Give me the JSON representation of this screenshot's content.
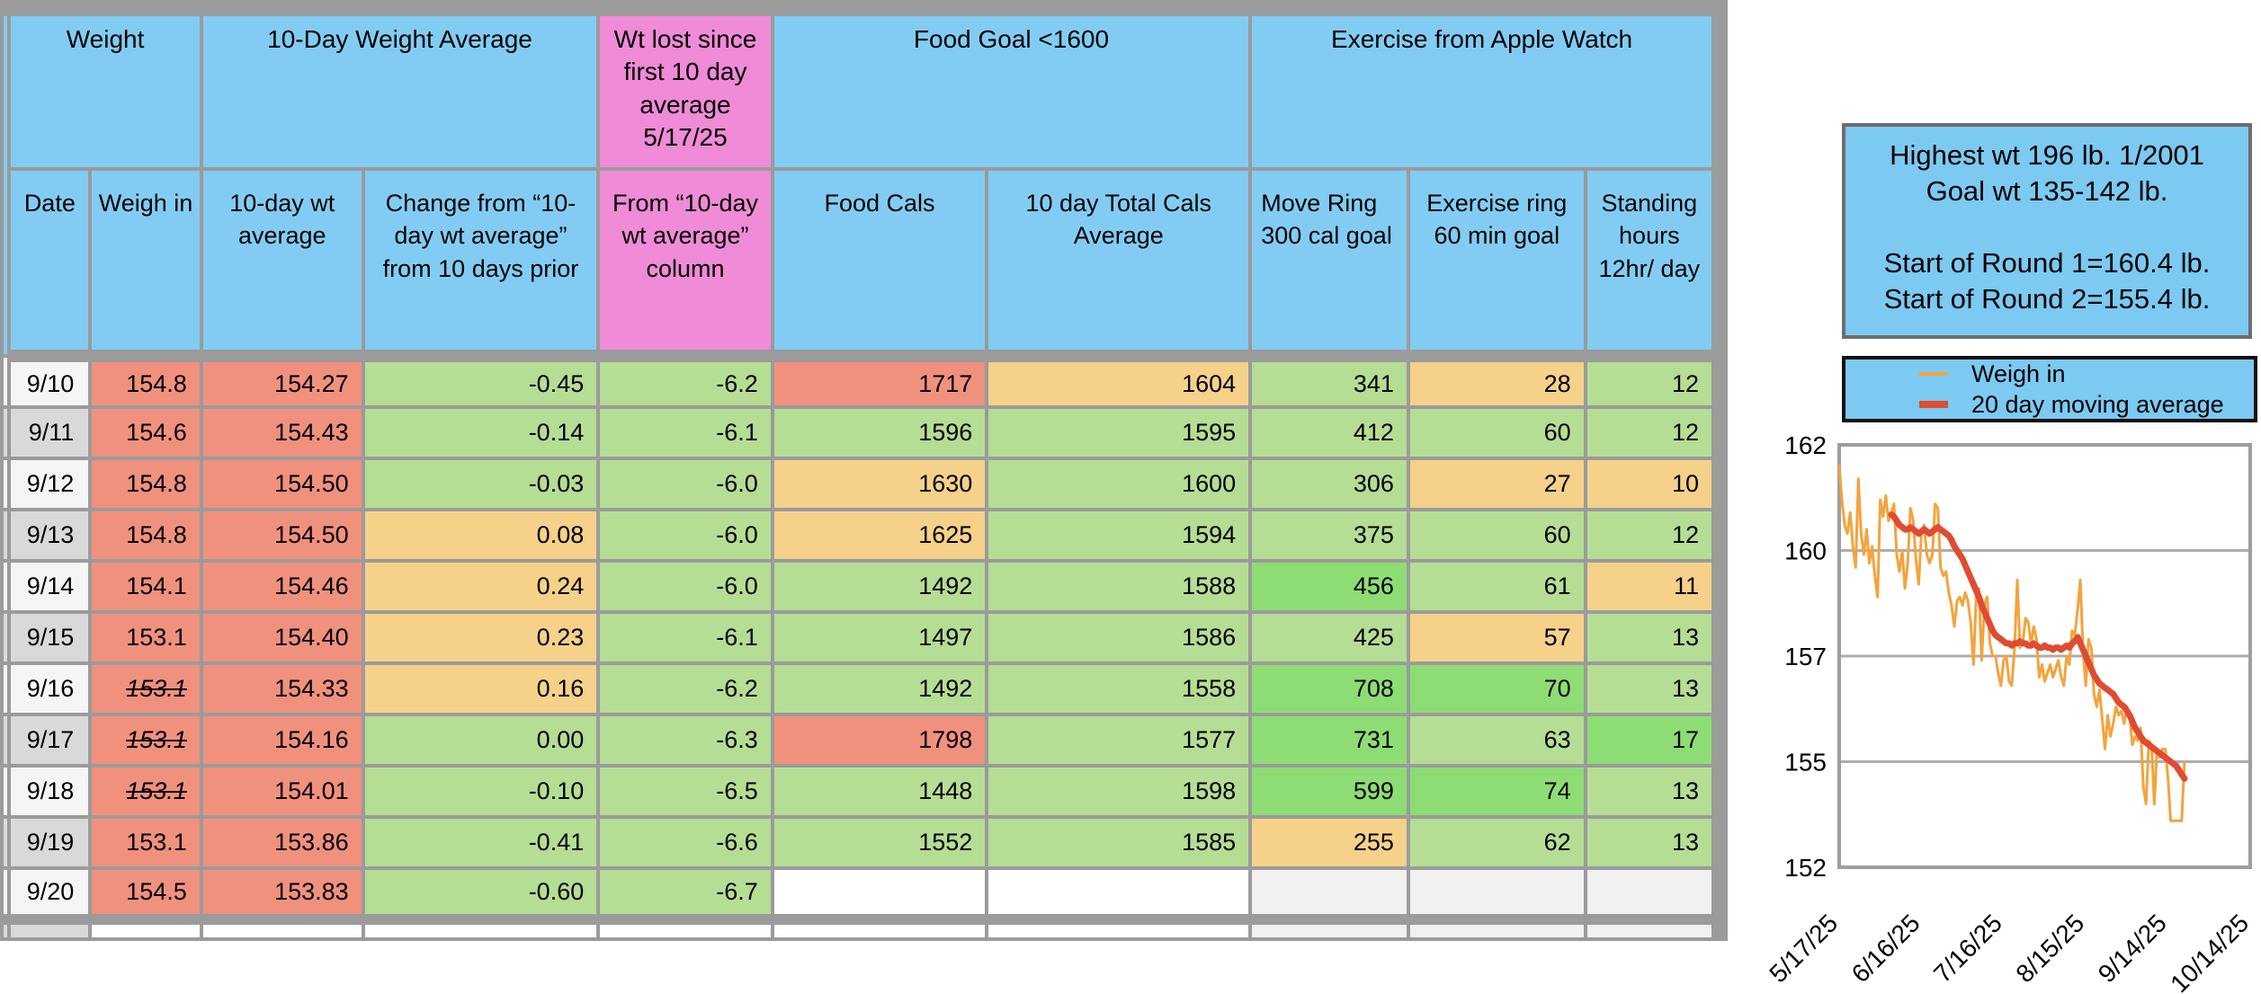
{
  "table": {
    "group_headers": [
      {
        "label": "Weight",
        "style": "blue",
        "span": 2
      },
      {
        "label": "10-Day Weight Average",
        "style": "blue",
        "span": 2
      },
      {
        "label": "Wt lost since first 10 day average 5/17/25",
        "style": "pink",
        "span": 1
      },
      {
        "label": "Food Goal <1600",
        "style": "blue",
        "span": 2
      },
      {
        "label": "Exercise from Apple Watch",
        "style": "blue",
        "span": 3
      }
    ],
    "columns": [
      {
        "key": "date",
        "label": "Date",
        "style": "blue"
      },
      {
        "key": "weigh-in",
        "label": "Weigh in",
        "style": "blue"
      },
      {
        "key": "10day-avg",
        "label": "10-day wt average",
        "style": "blue"
      },
      {
        "key": "change-from-prior",
        "label": "Change from “10-day wt average” from 10 days prior",
        "style": "blue"
      },
      {
        "key": "wt-lost",
        "label": "From “10-day wt average” column",
        "style": "pink"
      },
      {
        "key": "food-cals",
        "label": "Food Cals",
        "style": "blue"
      },
      {
        "key": "food-avg",
        "label": "10 day Total Cals Average",
        "style": "blue"
      },
      {
        "key": "move-ring",
        "label": "Move Ring 300 cal goal",
        "style": "blue"
      },
      {
        "key": "exercise-ring",
        "label": "Exercise ring 60 min goal",
        "style": "blue"
      },
      {
        "key": "standing-hours",
        "label": "Standing hours 12hr/ day",
        "style": "blue"
      }
    ],
    "rows": [
      {
        "stripe": "light",
        "strike_weigh_in": false,
        "values": [
          "9/10",
          "154.8",
          "154.27",
          "-0.45",
          "-6.2",
          "1717",
          "1604",
          "341",
          "28",
          "12"
        ],
        "bgs": [
          "red",
          "red",
          "green",
          "green",
          "red",
          "yellow",
          "green",
          "yellow",
          "green"
        ]
      },
      {
        "stripe": "dark",
        "strike_weigh_in": false,
        "values": [
          "9/11",
          "154.6",
          "154.43",
          "-0.14",
          "-6.1",
          "1596",
          "1595",
          "412",
          "60",
          "12"
        ],
        "bgs": [
          "red",
          "red",
          "green",
          "green",
          "green",
          "green",
          "green",
          "green",
          "green"
        ]
      },
      {
        "stripe": "light",
        "strike_weigh_in": false,
        "values": [
          "9/12",
          "154.8",
          "154.50",
          "-0.03",
          "-6.0",
          "1630",
          "1600",
          "306",
          "27",
          "10"
        ],
        "bgs": [
          "red",
          "red",
          "green",
          "green",
          "yellow",
          "green",
          "green",
          "yellow",
          "yellow"
        ]
      },
      {
        "stripe": "dark",
        "strike_weigh_in": false,
        "values": [
          "9/13",
          "154.8",
          "154.50",
          "0.08",
          "-6.0",
          "1625",
          "1594",
          "375",
          "60",
          "12"
        ],
        "bgs": [
          "red",
          "red",
          "yellow",
          "green",
          "yellow",
          "green",
          "green",
          "green",
          "green"
        ]
      },
      {
        "stripe": "light",
        "strike_weigh_in": false,
        "values": [
          "9/14",
          "154.1",
          "154.46",
          "0.24",
          "-6.0",
          "1492",
          "1588",
          "456",
          "61",
          "11"
        ],
        "bgs": [
          "red",
          "red",
          "yellow",
          "green",
          "green",
          "green",
          "bgreen",
          "green",
          "yellow"
        ]
      },
      {
        "stripe": "dark",
        "strike_weigh_in": false,
        "values": [
          "9/15",
          "153.1",
          "154.40",
          "0.23",
          "-6.1",
          "1497",
          "1586",
          "425",
          "57",
          "13"
        ],
        "bgs": [
          "red",
          "red",
          "yellow",
          "green",
          "green",
          "green",
          "green",
          "yellow",
          "green"
        ]
      },
      {
        "stripe": "light",
        "strike_weigh_in": true,
        "values": [
          "9/16",
          "153.1",
          "154.33",
          "0.16",
          "-6.2",
          "1492",
          "1558",
          "708",
          "70",
          "13"
        ],
        "bgs": [
          "red",
          "red",
          "yellow",
          "green",
          "green",
          "green",
          "bgreen",
          "bgreen",
          "green"
        ]
      },
      {
        "stripe": "dark",
        "strike_weigh_in": true,
        "values": [
          "9/17",
          "153.1",
          "154.16",
          "0.00",
          "-6.3",
          "1798",
          "1577",
          "731",
          "63",
          "17"
        ],
        "bgs": [
          "red",
          "red",
          "green",
          "green",
          "red",
          "green",
          "bgreen",
          "green",
          "bgreen"
        ]
      },
      {
        "stripe": "light",
        "strike_weigh_in": true,
        "values": [
          "9/18",
          "153.1",
          "154.01",
          "-0.10",
          "-6.5",
          "1448",
          "1598",
          "599",
          "74",
          "13"
        ],
        "bgs": [
          "red",
          "red",
          "green",
          "green",
          "green",
          "green",
          "bgreen",
          "bgreen",
          "green"
        ]
      },
      {
        "stripe": "dark",
        "strike_weigh_in": false,
        "values": [
          "9/19",
          "153.1",
          "153.86",
          "-0.41",
          "-6.6",
          "1552",
          "1585",
          "255",
          "62",
          "13"
        ],
        "bgs": [
          "red",
          "red",
          "green",
          "green",
          "green",
          "green",
          "yellow",
          "green",
          "green"
        ]
      },
      {
        "stripe": "light",
        "strike_weigh_in": false,
        "last": true,
        "values": [
          "9/20",
          "154.5",
          "153.83",
          "-0.60",
          "-6.7",
          "",
          "",
          "",
          "",
          ""
        ],
        "bgs": [
          "red",
          "red",
          "green",
          "green",
          "white",
          "white",
          "egray",
          "egray",
          "egray"
        ]
      }
    ],
    "bottom_partial_row": {
      "stripe": "dark",
      "bgs": [
        "white",
        "white",
        "white",
        "white",
        "white",
        "white",
        "egray",
        "egray",
        "egray"
      ]
    }
  },
  "info_box": {
    "lines": [
      "Highest wt 196 lb.  1/2001",
      "Goal wt 135-142 lb.",
      "",
      "Start of Round 1=160.4 lb.",
      "Start of Round 2=155.4 lb."
    ]
  },
  "legend": {
    "items": [
      {
        "label": "Weigh in",
        "color": "#F5A33C",
        "thickness": 4
      },
      {
        "label": "20 day moving average",
        "color": "#E04B32",
        "thickness": 8
      }
    ]
  },
  "chart_data": {
    "type": "line",
    "title": "",
    "xlabel": "",
    "ylabel": "",
    "grid": true,
    "legend_position": "separate box above chart",
    "x_axis": {
      "unit": "days since 5/17/25",
      "domain_days": [
        0,
        150
      ],
      "tick_days": [
        0,
        30,
        60,
        90,
        120,
        150
      ],
      "tick_labels": [
        "5/17/25",
        "6/16/25",
        "7/16/25",
        "8/15/25",
        "9/14/25",
        "10/14/25"
      ]
    },
    "y_axis": {
      "range": [
        152,
        162
      ],
      "tick_values": [
        162,
        159.5,
        157,
        154.5,
        152
      ],
      "tick_labels": [
        "162",
        "160",
        "157",
        "155",
        "152"
      ]
    },
    "series": [
      {
        "name": "Weigh in",
        "color": "#F5A33C",
        "stroke_width": 3,
        "start_day": 0,
        "values": [
          161.5,
          160.7,
          160.1,
          159.9,
          160.4,
          159.6,
          159.1,
          161.2,
          159.9,
          159.4,
          160.0,
          159.2,
          159.6,
          158.9,
          158.4,
          160.7,
          160.3,
          160.8,
          160.2,
          160.4,
          160.6,
          159.4,
          159.0,
          159.5,
          158.6,
          159.2,
          160.5,
          160.2,
          159.3,
          158.7,
          159.9,
          160.1,
          159.4,
          159.2,
          159.4,
          160.6,
          160.5,
          159.1,
          158.9,
          159.0,
          158.5,
          158.2,
          157.7,
          158.3,
          158.4,
          158.2,
          158.5,
          158.3,
          157.8,
          156.8,
          158.4,
          158.6,
          156.9,
          158.2,
          158.4,
          157.3,
          157.0,
          157.0,
          156.6,
          156.3,
          156.9,
          157.0,
          156.4,
          156.3,
          157.2,
          158.8,
          157.2,
          157.3,
          157.9,
          157.8,
          157.3,
          157.7,
          157.4,
          156.5,
          156.8,
          156.4,
          156.6,
          156.8,
          156.5,
          156.7,
          156.9,
          156.5,
          156.3,
          157.0,
          156.8,
          157.6,
          157.5,
          158.1,
          158.8,
          157.1,
          156.3,
          157.4,
          157.2,
          156.1,
          155.8,
          156.2,
          155.5,
          154.8,
          155.6,
          155.1,
          155.4,
          155.8,
          155.6,
          155.7,
          155.4,
          155.8,
          155.6,
          154.9,
          155.1,
          155.0,
          155.3,
          153.9,
          153.5,
          155.0,
          154.9,
          153.5,
          154.8,
          154.6,
          154.8,
          154.8,
          154.1,
          153.1,
          153.1,
          153.1,
          153.1,
          153.1,
          154.5
        ]
      },
      {
        "name": "20 day moving average",
        "color": "#E04B32",
        "stroke_width": 7,
        "start_day": 19,
        "values": [
          160.35,
          160.3,
          160.2,
          160.1,
          160.05,
          160.0,
          160.0,
          160.05,
          160.0,
          159.95,
          159.9,
          159.95,
          160.0,
          159.95,
          159.9,
          159.95,
          160.0,
          160.05,
          160.0,
          159.95,
          159.9,
          159.85,
          159.75,
          159.6,
          159.5,
          159.4,
          159.3,
          159.15,
          159.0,
          158.85,
          158.7,
          158.55,
          158.4,
          158.2,
          158.05,
          157.9,
          157.75,
          157.6,
          157.5,
          157.45,
          157.4,
          157.35,
          157.3,
          157.3,
          157.25,
          157.3,
          157.3,
          157.35,
          157.3,
          157.3,
          157.25,
          157.25,
          157.3,
          157.25,
          157.2,
          157.2,
          157.25,
          157.2,
          157.2,
          157.15,
          157.2,
          157.2,
          157.15,
          157.2,
          157.25,
          157.2,
          157.3,
          157.35,
          157.45,
          157.3,
          157.15,
          157.0,
          156.85,
          156.7,
          156.55,
          156.45,
          156.35,
          156.3,
          156.25,
          156.2,
          156.15,
          156.1,
          156.0,
          155.9,
          155.85,
          155.8,
          155.7,
          155.6,
          155.45,
          155.3,
          155.2,
          155.1,
          155.0,
          154.95,
          154.9,
          154.85,
          154.8,
          154.75,
          154.7,
          154.65,
          154.6,
          154.55,
          154.5,
          154.45,
          154.4,
          154.3,
          154.2,
          154.1
        ]
      }
    ]
  },
  "colors": {
    "header_blue": "#82CCF3",
    "header_pink": "#EF8BD7",
    "cell_red": "#F0917E",
    "cell_green": "#B5DD94",
    "cell_bright_green": "#8EDD74",
    "cell_yellow": "#F5D189",
    "stripe_light": "#F5F5F5",
    "stripe_dark": "#D9D9D9",
    "empty_gray": "#F1F1F1",
    "border_gray": "#9B9B9B",
    "weigh_in_line": "#F5A33C",
    "moving_avg_line": "#E04B32"
  }
}
